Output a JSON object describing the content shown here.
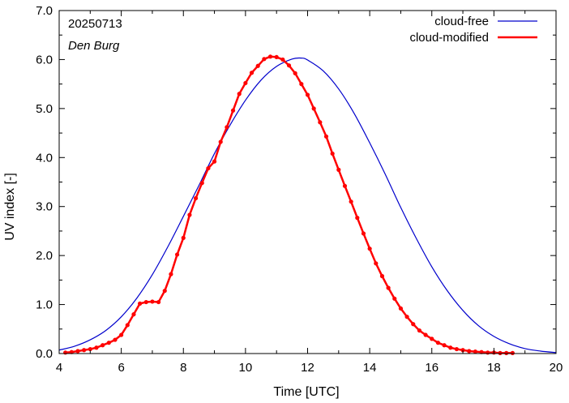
{
  "chart_data": {
    "type": "line",
    "title": "",
    "annotations": [
      "20250713",
      "Den Burg"
    ],
    "xlabel": "Time  [UTC]",
    "ylabel": "UV index  [-]",
    "xlim": [
      4,
      20
    ],
    "ylim": [
      0,
      7
    ],
    "xticks": [
      4,
      6,
      8,
      10,
      12,
      14,
      16,
      18,
      20
    ],
    "xtick_labels": [
      "4",
      "6",
      "8",
      "10",
      "12",
      "14",
      "16",
      "18",
      "20"
    ],
    "yticks": [
      0,
      1,
      2,
      3,
      4,
      5,
      6,
      7
    ],
    "ytick_labels": [
      "0.0",
      "1.0",
      "2.0",
      "3.0",
      "4.0",
      "5.0",
      "6.0",
      "7.0"
    ],
    "grid": false,
    "legend_position": "top-right",
    "series": [
      {
        "name": "cloud-free",
        "color": "#0000cc",
        "markers": false,
        "x": [
          4.0,
          4.5,
          5.0,
          5.5,
          6.0,
          6.5,
          7.0,
          7.5,
          8.0,
          8.5,
          9.0,
          9.5,
          10.0,
          10.5,
          11.0,
          11.5,
          11.8,
          12.0,
          12.5,
          13.0,
          13.5,
          14.0,
          14.5,
          15.0,
          15.5,
          16.0,
          16.5,
          17.0,
          17.5,
          18.0,
          18.5,
          19.0,
          19.5,
          20.0
        ],
        "y": [
          0.07,
          0.15,
          0.28,
          0.47,
          0.75,
          1.13,
          1.61,
          2.18,
          2.8,
          3.43,
          4.08,
          4.66,
          5.17,
          5.58,
          5.86,
          6.01,
          6.03,
          5.99,
          5.77,
          5.4,
          4.9,
          4.3,
          3.66,
          2.98,
          2.35,
          1.77,
          1.28,
          0.88,
          0.57,
          0.35,
          0.2,
          0.1,
          0.05,
          0.02
        ]
      },
      {
        "name": "cloud-modified",
        "color": "#ff0000",
        "markers": true,
        "x": [
          4.2,
          4.4,
          4.6,
          4.8,
          5.0,
          5.2,
          5.4,
          5.6,
          5.8,
          6.0,
          6.2,
          6.4,
          6.6,
          6.8,
          7.0,
          7.2,
          7.4,
          7.6,
          7.8,
          8.0,
          8.2,
          8.4,
          8.6,
          8.8,
          9.0,
          9.2,
          9.4,
          9.6,
          9.8,
          10.0,
          10.2,
          10.4,
          10.6,
          10.8,
          11.0,
          11.2,
          11.4,
          11.6,
          11.8,
          12.0,
          12.2,
          12.4,
          12.6,
          12.8,
          13.0,
          13.2,
          13.4,
          13.6,
          13.8,
          14.0,
          14.2,
          14.4,
          14.6,
          14.8,
          15.0,
          15.2,
          15.4,
          15.6,
          15.8,
          16.0,
          16.2,
          16.4,
          16.6,
          16.8,
          17.0,
          17.2,
          17.4,
          17.6,
          17.8,
          18.0,
          18.2,
          18.4,
          18.6
        ],
        "y": [
          0.02,
          0.03,
          0.05,
          0.07,
          0.09,
          0.12,
          0.17,
          0.22,
          0.28,
          0.38,
          0.58,
          0.8,
          1.02,
          1.05,
          1.06,
          1.05,
          1.28,
          1.62,
          2.02,
          2.36,
          2.83,
          3.17,
          3.48,
          3.78,
          3.92,
          4.32,
          4.62,
          4.96,
          5.3,
          5.52,
          5.73,
          5.87,
          6.01,
          6.06,
          6.05,
          6.0,
          5.88,
          5.72,
          5.5,
          5.28,
          5.0,
          4.72,
          4.43,
          4.08,
          3.75,
          3.42,
          3.1,
          2.77,
          2.45,
          2.14,
          1.84,
          1.58,
          1.34,
          1.12,
          0.92,
          0.75,
          0.6,
          0.47,
          0.38,
          0.3,
          0.22,
          0.17,
          0.12,
          0.09,
          0.07,
          0.05,
          0.04,
          0.03,
          0.02,
          0.02,
          0.01,
          0.01,
          0.01
        ]
      }
    ]
  }
}
